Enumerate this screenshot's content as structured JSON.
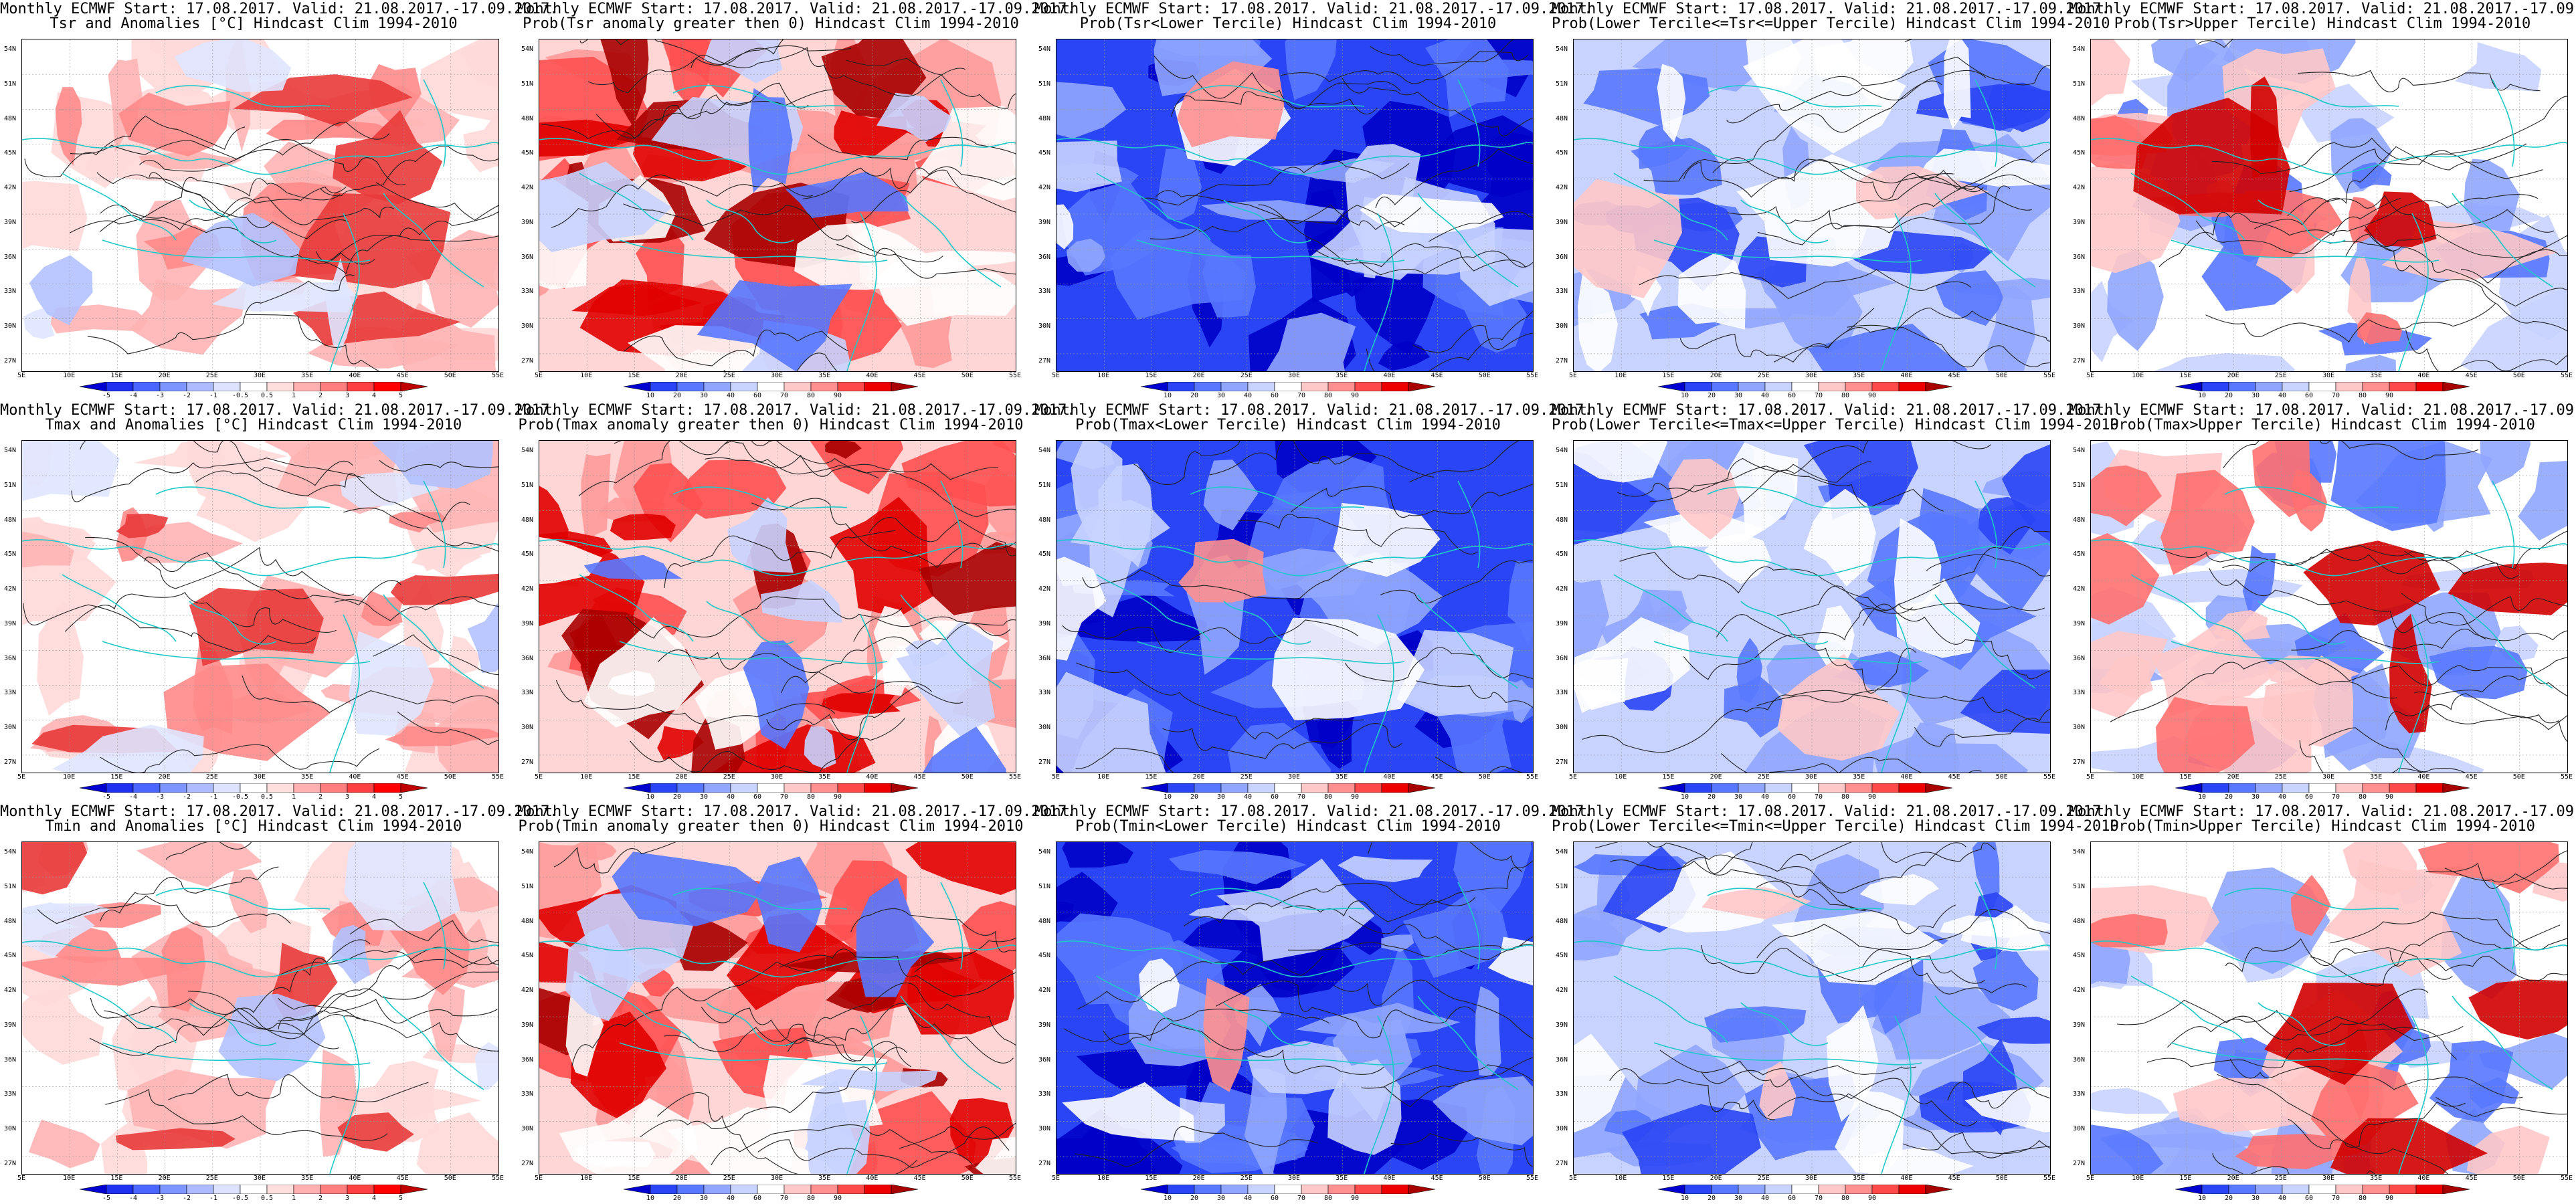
{
  "header": "Monthly ECMWF Start: 17.08.2017. Valid: 21.08.2017.-17.09.2017.",
  "lat_labels": [
    "54N",
    "51N",
    "48N",
    "45N",
    "42N",
    "39N",
    "36N",
    "33N",
    "30N",
    "27N"
  ],
  "lon_labels": [
    "5E",
    "10E",
    "15E",
    "20E",
    "25E",
    "30E",
    "35E",
    "40E",
    "45E",
    "50E",
    "55E"
  ],
  "scales": {
    "anom_ticks": [
      "-5",
      "-4",
      "-3",
      "-2",
      "-1",
      "-0.5",
      "0.5",
      "1",
      "2",
      "3",
      "4",
      "5"
    ],
    "prob_ticks": [
      "10",
      "20",
      "30",
      "40",
      "60",
      "70",
      "80",
      "90"
    ],
    "anom_colors": [
      "#0000d0",
      "#1e30f0",
      "#4a66ff",
      "#7d95ff",
      "#aebcff",
      "#dde3ff",
      "#ffffff",
      "#ffdede",
      "#ffb0b0",
      "#ff7f7f",
      "#ff4040",
      "#ff0000",
      "#c00000"
    ],
    "prob_colors": [
      "#0000d0",
      "#2a45f5",
      "#5878ff",
      "#90a6ff",
      "#c8d3ff",
      "#ffffff",
      "#ffc8c8",
      "#ff9090",
      "#ff4a4a",
      "#ee0000",
      "#a80000"
    ]
  },
  "rows": [
    [
      {
        "subtitle": "Tsr and Anomalies [°C] Hindcast Clim 1994-2010",
        "scale": "anom",
        "theme": "anom"
      },
      {
        "subtitle": "Prob(Tsr anomaly greater then 0) Hindcast Clim 1994-2010",
        "scale": "prob",
        "theme": "warm"
      },
      {
        "subtitle": "Prob(Tsr<Lower Tercile) Hindcast Clim 1994-2010",
        "scale": "prob",
        "theme": "cold"
      },
      {
        "subtitle": "Prob(Lower Tercile<=Tsr<=Upper Tercile) Hindcast Clim 1994-2010",
        "scale": "prob",
        "theme": "mid"
      },
      {
        "subtitle": "Prob(Tsr>Upper Tercile) Hindcast Clim 1994-2010",
        "scale": "prob",
        "theme": "upper"
      }
    ],
    [
      {
        "subtitle": "Tmax and Anomalies [°C] Hindcast Clim 1994-2010",
        "scale": "anom",
        "theme": "anom"
      },
      {
        "subtitle": "Prob(Tmax anomaly greater then 0) Hindcast Clim 1994-2010",
        "scale": "prob",
        "theme": "warm"
      },
      {
        "subtitle": "Prob(Tmax<Lower Tercile) Hindcast Clim 1994-2010",
        "scale": "prob",
        "theme": "cold"
      },
      {
        "subtitle": "Prob(Lower Tercile<=Tmax<=Upper Tercile) Hindcast Clim 1994-2010",
        "scale": "prob",
        "theme": "mid"
      },
      {
        "subtitle": "Prob(Tmax>Upper Tercile) Hindcast Clim 1994-2010",
        "scale": "prob",
        "theme": "upper"
      }
    ],
    [
      {
        "subtitle": "Tmin and Anomalies [°C] Hindcast Clim 1994-2010",
        "scale": "anom",
        "theme": "anom"
      },
      {
        "subtitle": "Prob(Tmin anomaly greater then 0) Hindcast Clim 1994-2010",
        "scale": "prob",
        "theme": "warm"
      },
      {
        "subtitle": "Prob(Tmin<Lower Tercile) Hindcast Clim 1994-2010",
        "scale": "prob",
        "theme": "cold"
      },
      {
        "subtitle": "Prob(Lower Tercile<=Tmin<=Upper Tercile) Hindcast Clim 1994-2010",
        "scale": "prob",
        "theme": "mid"
      },
      {
        "subtitle": "Prob(Tmin>Upper Tercile) Hindcast Clim 1994-2010",
        "scale": "prob",
        "theme": "upper"
      }
    ]
  ]
}
